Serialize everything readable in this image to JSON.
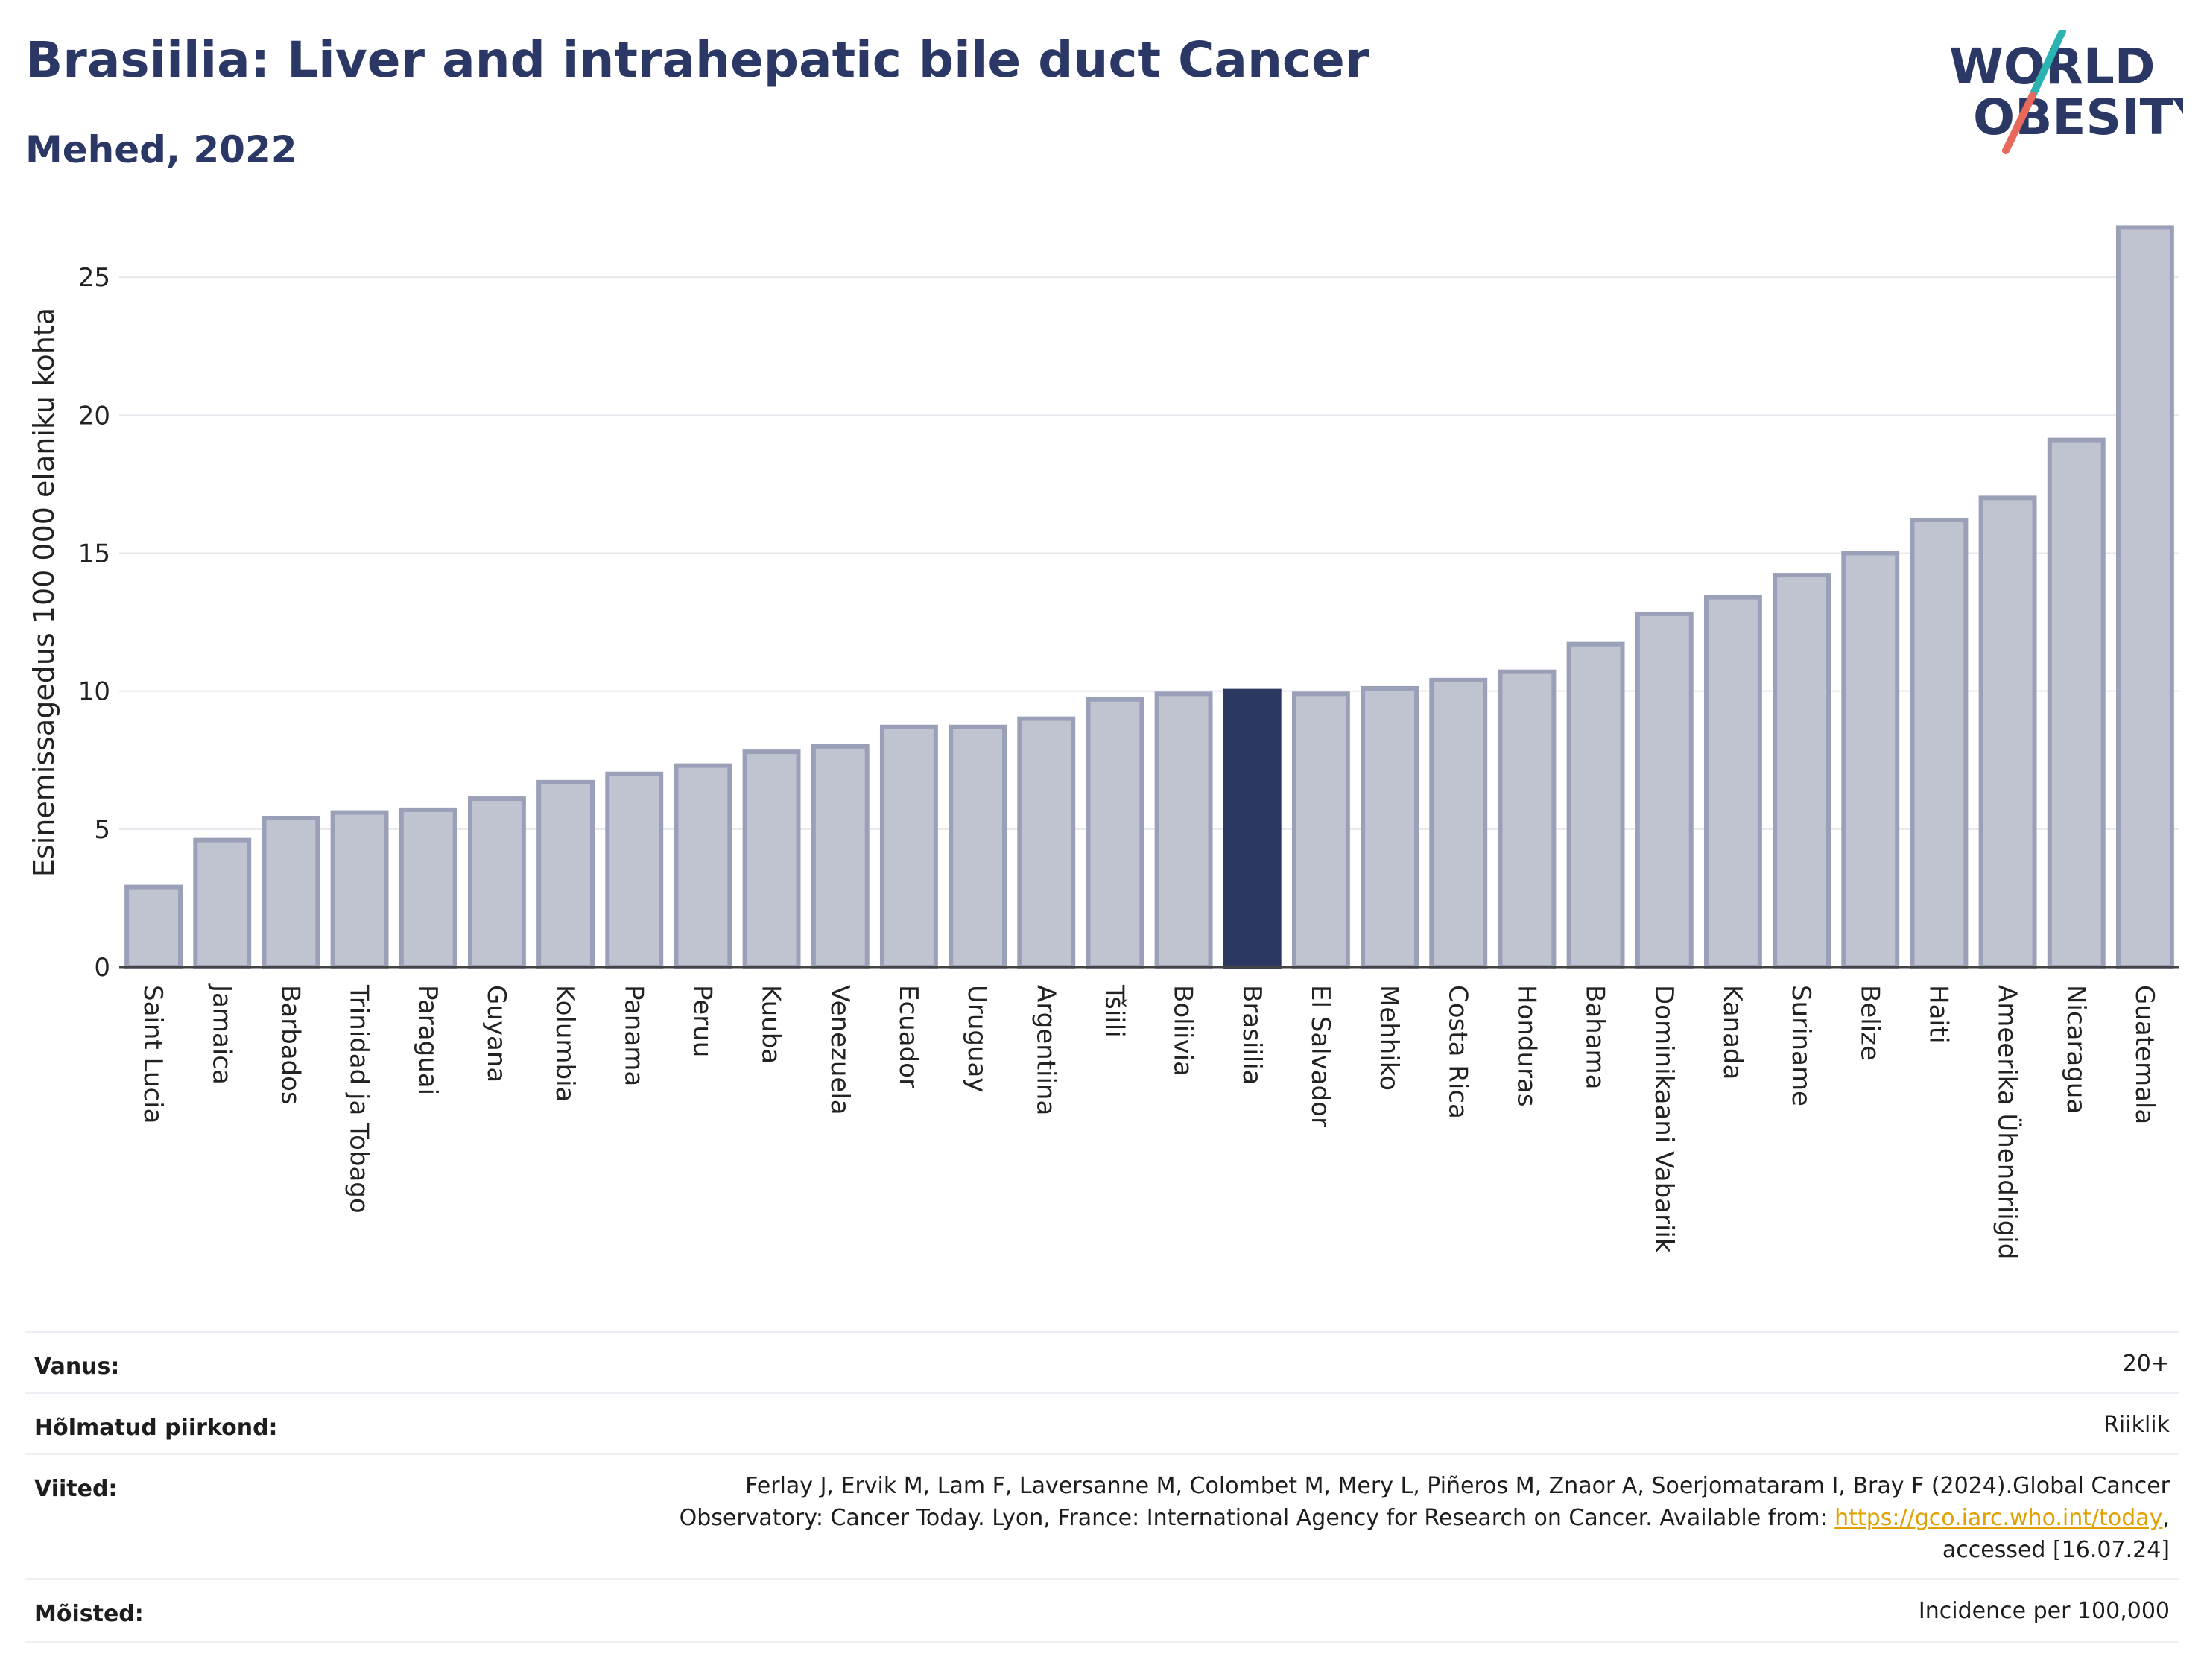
{
  "header": {
    "title": "Brasiilia: Liver and intrahepatic bile duct Cancer",
    "subtitle": "Mehed, 2022"
  },
  "logo": {
    "line1": "WORLD",
    "line2": "OBESITY",
    "accent_teal": "#2ab3b1",
    "accent_red": "#e8685a"
  },
  "colors": {
    "bar": "#c0c3d0",
    "bar_stroke": "#9aa0b8",
    "highlight": "#2b3862",
    "grid": "#e6e8ee"
  },
  "chart_data": {
    "type": "bar",
    "ylabel": "Esinemissagedus 100 000 elaniku kohta",
    "ylim": [
      0,
      27
    ],
    "yticks": [
      0,
      5,
      10,
      15,
      20,
      25
    ],
    "highlight": "Brasiilia",
    "categories": [
      "Saint Lucia",
      "Jamaica",
      "Barbados",
      "Trinidad ja Tobago",
      "Paraguai",
      "Guyana",
      "Kolumbia",
      "Panama",
      "Peruu",
      "Kuuba",
      "Venezuela",
      "Ecuador",
      "Uruguay",
      "Argentiina",
      "Tšiili",
      "Boliivia",
      "Brasiilia",
      "El Salvador",
      "Mehhiko",
      "Costa Rica",
      "Honduras",
      "Bahama",
      "Dominikaani Vabariik",
      "Kanada",
      "Suriname",
      "Belize",
      "Haiti",
      "Ameerika Ühendriigid",
      "Nicaragua",
      "Guatemala"
    ],
    "values": [
      2.9,
      4.6,
      5.4,
      5.6,
      5.7,
      6.1,
      6.7,
      7.0,
      7.3,
      7.8,
      8.0,
      8.7,
      8.7,
      9.0,
      9.7,
      9.9,
      10.0,
      9.9,
      10.1,
      10.4,
      10.7,
      11.7,
      12.8,
      13.4,
      14.2,
      15.0,
      16.2,
      17.0,
      19.1,
      26.8
    ]
  },
  "meta": {
    "age_label": "Vanus:",
    "age_value": "20+",
    "region_label": "Hõlmatud piirkond:",
    "region_value": "Riiklik",
    "refs_label": "Viited:",
    "refs_line1": "Ferlay J, Ervik M, Lam F, Laversanne M, Colombet M, Mery L, Piñeros M, Znaor A, Soerjomataram I, Bray F (2024).Global Cancer",
    "refs_line2": "Observatory: Cancer Today. Lyon, France: International Agency for Research on Cancer. Available from: ",
    "refs_link": "https://gco.iarc.who.int/today",
    "refs_line2_end": ",",
    "refs_line3": "accessed [16.07.24]",
    "def_label": "Mõisted:",
    "def_value": "Incidence per 100,000"
  }
}
